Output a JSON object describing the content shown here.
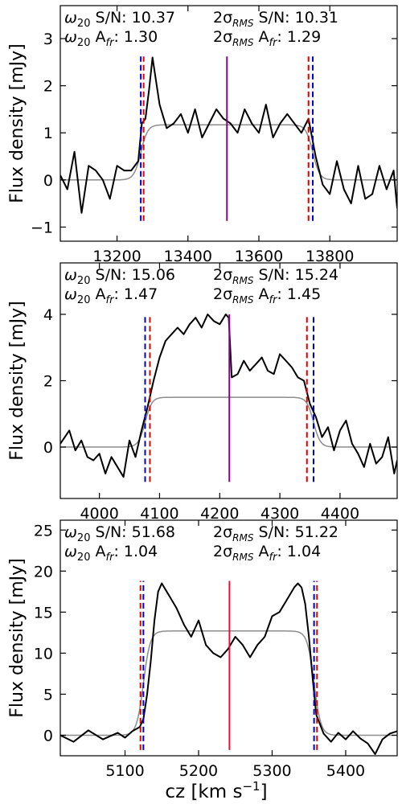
{
  "figure": {
    "xlabel": "cz [km s",
    "xlabel_sup": "−1",
    "xlabel_tail": "]"
  },
  "chart_data": [
    {
      "type": "line",
      "ylabel": "Flux density [mJy]",
      "xlim": [
        13040,
        13990
      ],
      "ylim": [
        -1.3,
        3.7
      ],
      "xticks": [
        13200,
        13400,
        13600,
        13800
      ],
      "yticks": [
        -1,
        0,
        1,
        2,
        3
      ],
      "annotations": {
        "w20_sn": {
          "label": "S/N: ",
          "value": "10.37"
        },
        "w20_afr": {
          "label": "A",
          "sub": "fr",
          "tail": ": ",
          "value": "1.30"
        },
        "rms_sn": {
          "label": "S/N: ",
          "value": "10.31"
        },
        "rms_afr": {
          "label": "A",
          "sub": "fr",
          "tail": ": ",
          "value": "1.29"
        }
      },
      "markers": {
        "w20": [
          13267,
          13752
        ],
        "rms": [
          13275,
          13740
        ],
        "center": 13510,
        "center_color": "#8b008b",
        "marker_ylim": [
          -0.87,
          2.62
        ]
      },
      "model": {
        "x0": 13267,
        "x1": 13752,
        "level": 1.17
      },
      "series": [
        {
          "color": "#000000",
          "x": [
            13040,
            13060,
            13080,
            13100,
            13120,
            13140,
            13160,
            13180,
            13200,
            13220,
            13240,
            13260,
            13270,
            13280,
            13290,
            13300,
            13310,
            13320,
            13340,
            13360,
            13380,
            13400,
            13420,
            13440,
            13460,
            13480,
            13500,
            13520,
            13540,
            13560,
            13580,
            13600,
            13620,
            13640,
            13660,
            13680,
            13700,
            13720,
            13740,
            13760,
            13780,
            13800,
            13820,
            13840,
            13860,
            13880,
            13900,
            13920,
            13940,
            13960,
            13980,
            13990
          ],
          "y": [
            0.1,
            -0.2,
            0.6,
            -0.7,
            0.3,
            0.2,
            0.0,
            -0.4,
            0.3,
            0.2,
            0.2,
            0.4,
            1.2,
            1.3,
            1.9,
            2.6,
            2.1,
            1.6,
            1.1,
            1.2,
            1.4,
            1.0,
            1.5,
            0.9,
            1.2,
            1.5,
            1.3,
            1.2,
            1.0,
            1.5,
            1.2,
            1.0,
            1.6,
            0.9,
            1.2,
            1.4,
            1.2,
            1.0,
            1.3,
            0.5,
            -0.1,
            -0.3,
            0.4,
            -0.2,
            -0.5,
            0.3,
            -0.4,
            -0.3,
            0.3,
            -0.2,
            0.2,
            -0.6
          ]
        }
      ]
    },
    {
      "type": "line",
      "ylabel": "Flux density [mJy]",
      "xlim": [
        3935,
        4495
      ],
      "ylim": [
        -1.55,
        5.55
      ],
      "xticks": [
        4000,
        4100,
        4200,
        4300,
        4400
      ],
      "yticks": [
        0,
        2,
        4
      ],
      "annotations": {
        "w20_sn": {
          "label": "S/N: ",
          "value": "15.06"
        },
        "w20_afr": {
          "label": "A",
          "sub": "fr",
          "tail": ": ",
          "value": "1.47"
        },
        "rms_sn": {
          "label": "S/N: ",
          "value": "15.24"
        },
        "rms_afr": {
          "label": "A",
          "sub": "fr",
          "tail": ": ",
          "value": "1.45"
        }
      },
      "markers": {
        "w20": [
          4076,
          4356
        ],
        "rms": [
          4084,
          4345
        ],
        "center": 4216,
        "center_color": "#8b008b",
        "marker_ylim": [
          -1.05,
          4.0
        ]
      },
      "model": {
        "x0": 4076,
        "x1": 4356,
        "level": 1.5
      },
      "series": [
        {
          "color": "#000000",
          "x": [
            3935,
            3950,
            3960,
            3970,
            3980,
            3990,
            4000,
            4010,
            4020,
            4030,
            4040,
            4050,
            4060,
            4070,
            4080,
            4090,
            4100,
            4110,
            4120,
            4130,
            4140,
            4150,
            4160,
            4170,
            4180,
            4190,
            4200,
            4210,
            4215,
            4220,
            4230,
            4240,
            4250,
            4260,
            4270,
            4280,
            4290,
            4300,
            4310,
            4320,
            4330,
            4340,
            4350,
            4360,
            4370,
            4380,
            4390,
            4400,
            4410,
            4420,
            4430,
            4440,
            4450,
            4460,
            4470,
            4480,
            4490,
            4495
          ],
          "y": [
            0.1,
            0.5,
            -0.1,
            0.2,
            -0.3,
            -0.4,
            -0.2,
            -0.8,
            -0.3,
            -0.6,
            -0.9,
            0.2,
            -0.3,
            0.5,
            1.2,
            2.0,
            2.7,
            3.2,
            3.4,
            3.6,
            3.4,
            3.7,
            3.9,
            3.6,
            4.0,
            3.8,
            3.7,
            4.0,
            3.9,
            2.1,
            2.2,
            2.6,
            2.3,
            2.5,
            2.7,
            2.3,
            2.2,
            2.8,
            2.6,
            2.4,
            2.1,
            2.0,
            1.3,
            0.9,
            0.3,
            0.6,
            -0.1,
            0.5,
            0.8,
            0.1,
            -0.2,
            -0.6,
            0.1,
            -0.5,
            -0.3,
            0.3,
            -0.8,
            -0.4
          ]
        }
      ]
    },
    {
      "type": "line",
      "ylabel": "Flux density [mJy]",
      "xlim": [
        5012,
        5470
      ],
      "ylim": [
        -2.5,
        26.2
      ],
      "xticks": [
        5100,
        5200,
        5300,
        5400
      ],
      "yticks": [
        0,
        5,
        10,
        15,
        20,
        25
      ],
      "annotations": {
        "w20_sn": {
          "label": "S/N: ",
          "value": "51.68"
        },
        "w20_afr": {
          "label": "A",
          "sub": "fr",
          "tail": ": ",
          "value": "1.04"
        },
        "rms_sn": {
          "label": "S/N: ",
          "value": "51.22"
        },
        "rms_afr": {
          "label": "A",
          "sub": "fr",
          "tail": ": ",
          "value": "1.04"
        }
      },
      "markers": {
        "w20": [
          5125,
          5357
        ],
        "rms": [
          5121,
          5361
        ],
        "center": 5242,
        "center_color": "#dc143c",
        "marker_ylim": [
          -1.8,
          18.8
        ]
      },
      "model": {
        "x0": 5125,
        "x1": 5357,
        "level": 12.7
      },
      "series": [
        {
          "color": "#000000",
          "x": [
            5012,
            5030,
            5050,
            5070,
            5090,
            5100,
            5110,
            5120,
            5125,
            5130,
            5135,
            5140,
            5145,
            5150,
            5160,
            5170,
            5180,
            5190,
            5200,
            5210,
            5220,
            5230,
            5240,
            5250,
            5260,
            5270,
            5280,
            5290,
            5300,
            5310,
            5320,
            5330,
            5335,
            5340,
            5345,
            5350,
            5355,
            5360,
            5370,
            5380,
            5390,
            5400,
            5410,
            5420,
            5430,
            5440,
            5450,
            5460,
            5470
          ],
          "y": [
            0.0,
            -0.8,
            0.6,
            -0.5,
            0.3,
            -0.3,
            0.5,
            1.0,
            2.0,
            5.0,
            9.0,
            14.0,
            17.5,
            18.5,
            17.0,
            15.5,
            13.5,
            12.0,
            14.0,
            11.0,
            10.0,
            9.5,
            10.5,
            12.0,
            11.0,
            9.5,
            11.0,
            12.0,
            14.5,
            15.0,
            16.5,
            18.0,
            18.5,
            18.0,
            16.0,
            12.0,
            7.0,
            2.5,
            0.2,
            -0.8,
            0.3,
            -0.5,
            0.5,
            -0.4,
            -1.0,
            -2.3,
            -0.5,
            0.2,
            0.5
          ]
        }
      ]
    }
  ]
}
